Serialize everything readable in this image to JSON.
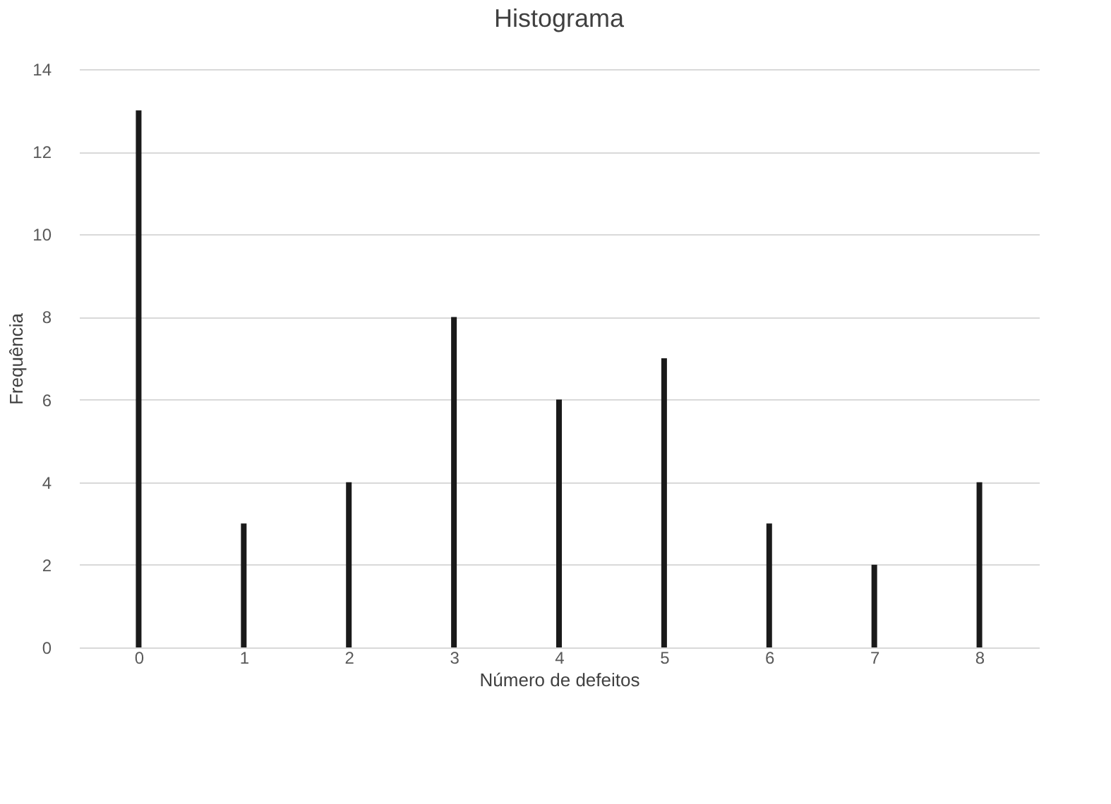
{
  "chart_data": {
    "type": "bar",
    "title": "Histograma",
    "xlabel": "Número de defeitos",
    "ylabel": "Frequência",
    "categories": [
      "0",
      "1",
      "2",
      "3",
      "4",
      "5",
      "6",
      "7",
      "8"
    ],
    "values": [
      13,
      3,
      4,
      8,
      6,
      7,
      3,
      2,
      4
    ],
    "color": "#1a1a1a",
    "ylim": [
      0,
      14
    ],
    "yticks": [
      0,
      2,
      4,
      6,
      8,
      10,
      12,
      14
    ],
    "grid": "y"
  }
}
